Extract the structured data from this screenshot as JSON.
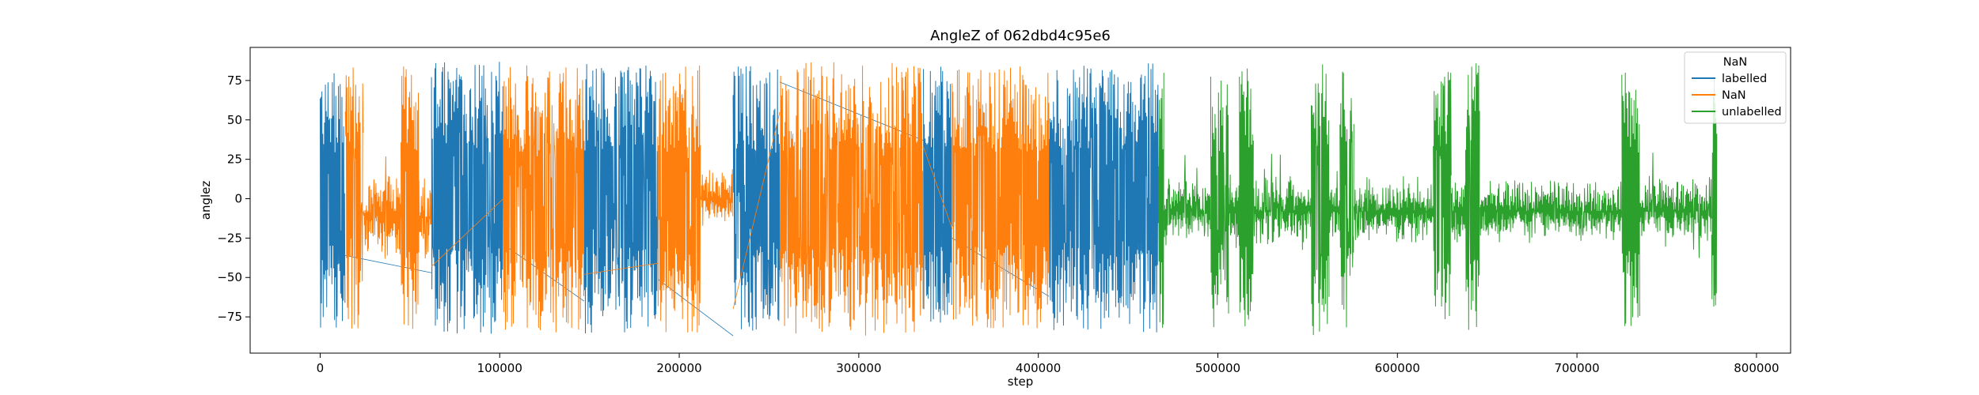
{
  "chart_data": {
    "type": "line",
    "title": "AngleZ of 062dbd4c95e6",
    "xlabel": "step",
    "ylabel": "anglez",
    "xlim": [
      -39000,
      819000
    ],
    "ylim": [
      -98,
      96
    ],
    "xticks": [
      0,
      100000,
      200000,
      300000,
      400000,
      500000,
      600000,
      700000,
      800000
    ],
    "xtick_labels": [
      "0",
      "100000",
      "200000",
      "300000",
      "400000",
      "500000",
      "600000",
      "700000",
      "800000"
    ],
    "yticks": [
      -75,
      -50,
      -25,
      0,
      25,
      50,
      75
    ],
    "ytick_labels": [
      "−75",
      "−50",
      "−25",
      "0",
      "25",
      "50",
      "75"
    ],
    "legend": {
      "title": "NaN",
      "position": "upper-right",
      "entries": [
        {
          "label": "labelled",
          "color": "#1f77b4"
        },
        {
          "label": "NaN",
          "color": "#ff7f0e"
        },
        {
          "label": "unlabelled",
          "color": "#2ca02c"
        }
      ]
    },
    "series": [
      {
        "name": "labelled",
        "color": "#1f77b4",
        "segments": [
          {
            "x_start": 0,
            "x_end": 14000,
            "mode": "wide",
            "amp": 82
          },
          {
            "x_start": 62000,
            "x_end": 102000,
            "mode": "wide",
            "amp": 87
          },
          {
            "x_start": 147000,
            "x_end": 188000,
            "mode": "wide",
            "amp": 86
          },
          {
            "x_start": 230000,
            "x_end": 256000,
            "mode": "wide",
            "amp": 86
          },
          {
            "x_start": 336000,
            "x_end": 352000,
            "mode": "wide",
            "amp": 84
          },
          {
            "x_start": 406000,
            "x_end": 467000,
            "mode": "wide",
            "amp": 86
          }
        ],
        "connectors": [
          {
            "x": [
              14000,
              62000
            ],
            "y": [
              -36,
              -47
            ]
          },
          {
            "x": [
              102000,
              147000
            ],
            "y": [
              -29,
              -65
            ]
          },
          {
            "x": [
              188000,
              230000
            ],
            "y": [
              -51,
              -87
            ]
          },
          {
            "x": [
              256000,
              336000
            ],
            "y": [
              74,
              37
            ]
          },
          {
            "x": [
              352000,
              406000
            ],
            "y": [
              -25,
              -62
            ]
          }
        ]
      },
      {
        "name": "NaN",
        "color": "#ff7f0e",
        "segments": [
          {
            "x_start": 14000,
            "x_end": 24000,
            "mode": "wide",
            "amp": 86
          },
          {
            "x_start": 24000,
            "x_end": 45000,
            "mode": "band",
            "center": -10,
            "amp": 30
          },
          {
            "x_start": 45000,
            "x_end": 55000,
            "mode": "wide",
            "amp": 85
          },
          {
            "x_start": 55000,
            "x_end": 62000,
            "mode": "band",
            "center": -12,
            "amp": 30
          },
          {
            "x_start": 102000,
            "x_end": 147000,
            "mode": "wide",
            "amp": 85
          },
          {
            "x_start": 188000,
            "x_end": 212000,
            "mode": "wide",
            "amp": 85
          },
          {
            "x_start": 212000,
            "x_end": 230000,
            "mode": "band",
            "center": 0,
            "amp": 20
          },
          {
            "x_start": 256000,
            "x_end": 336000,
            "mode": "wide",
            "amp": 87
          },
          {
            "x_start": 352000,
            "x_end": 406000,
            "mode": "wide",
            "amp": 84
          }
        ],
        "connectors": [
          {
            "x": [
              62000,
              102000
            ],
            "y": [
              -43,
              0
            ]
          },
          {
            "x": [
              147000,
              188000
            ],
            "y": [
              -48,
              -41
            ]
          },
          {
            "x": [
              230000,
              256000
            ],
            "y": [
              -70,
              55
            ]
          },
          {
            "x": [
              336000,
              352000
            ],
            "y": [
              33,
              -19
            ]
          }
        ]
      },
      {
        "name": "unlabelled",
        "color": "#2ca02c",
        "segments": [
          {
            "x_start": 467000,
            "x_end": 470000,
            "mode": "wide",
            "amp": 84
          },
          {
            "x_start": 470000,
            "x_end": 496000,
            "mode": "band",
            "center": -8,
            "amp": 26
          },
          {
            "x_start": 496000,
            "x_end": 506000,
            "mode": "wide",
            "amp": 82
          },
          {
            "x_start": 506000,
            "x_end": 512000,
            "mode": "band",
            "center": -8,
            "amp": 28
          },
          {
            "x_start": 512000,
            "x_end": 520000,
            "mode": "wide",
            "amp": 84
          },
          {
            "x_start": 520000,
            "x_end": 552000,
            "mode": "band",
            "center": -8,
            "amp": 26
          },
          {
            "x_start": 552000,
            "x_end": 562000,
            "mode": "wide",
            "amp": 87
          },
          {
            "x_start": 562000,
            "x_end": 568000,
            "mode": "band",
            "center": -8,
            "amp": 26
          },
          {
            "x_start": 568000,
            "x_end": 576000,
            "mode": "wide",
            "amp": 85
          },
          {
            "x_start": 576000,
            "x_end": 620000,
            "mode": "band",
            "center": -8,
            "amp": 24
          },
          {
            "x_start": 620000,
            "x_end": 630000,
            "mode": "wide",
            "amp": 85
          },
          {
            "x_start": 630000,
            "x_end": 638000,
            "mode": "band",
            "center": -8,
            "amp": 26
          },
          {
            "x_start": 638000,
            "x_end": 646000,
            "mode": "wide",
            "amp": 87
          },
          {
            "x_start": 646000,
            "x_end": 725000,
            "mode": "band",
            "center": -8,
            "amp": 22
          },
          {
            "x_start": 725000,
            "x_end": 735000,
            "mode": "wide",
            "amp": 82
          },
          {
            "x_start": 735000,
            "x_end": 775000,
            "mode": "band",
            "center": -8,
            "amp": 24
          },
          {
            "x_start": 775000,
            "x_end": 778000,
            "mode": "wide",
            "amp": 80
          }
        ],
        "connectors": []
      }
    ]
  }
}
